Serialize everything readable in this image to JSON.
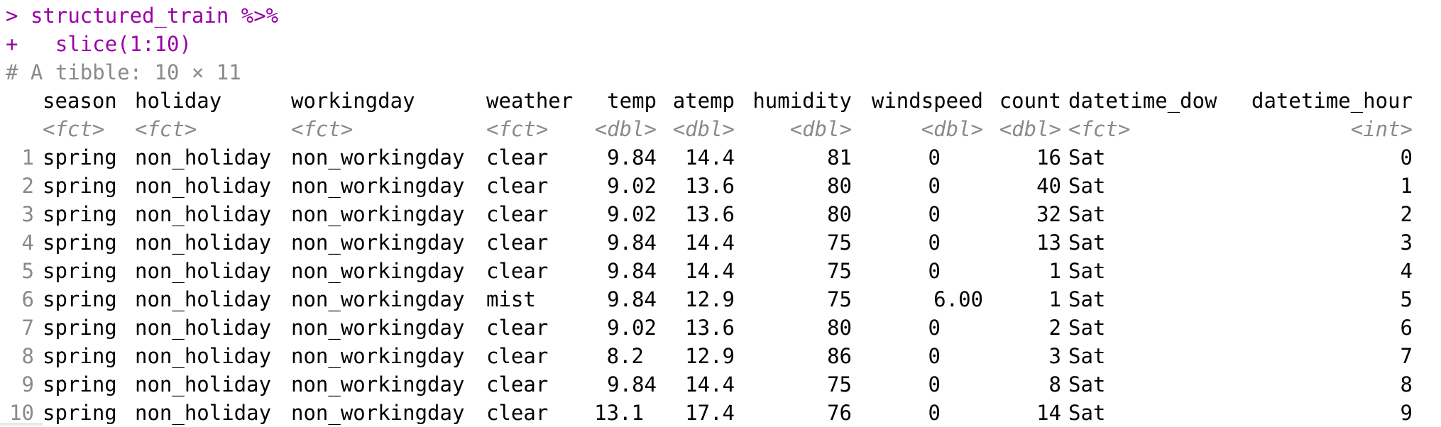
{
  "console": {
    "prompt_line": {
      "prompt": ">",
      "code": "structured_train %>%"
    },
    "continuation_line": {
      "prompt": "+",
      "code": "  slice(1:10)"
    },
    "tibble_header": "# A tibble: 10 × 11"
  },
  "table": {
    "columns": [
      {
        "name": "season",
        "type": "<fct>"
      },
      {
        "name": "holiday",
        "type": "<fct>"
      },
      {
        "name": "workingday",
        "type": "<fct>"
      },
      {
        "name": "weather",
        "type": "<fct>"
      },
      {
        "name": "temp",
        "type": "<dbl>"
      },
      {
        "name": "atemp",
        "type": "<dbl>"
      },
      {
        "name": "humidity",
        "type": "<dbl>"
      },
      {
        "name": "windspeed",
        "type": "<dbl>"
      },
      {
        "name": "count",
        "type": "<dbl>"
      },
      {
        "name": "datetime_dow",
        "type": "<fct>"
      },
      {
        "name": "datetime_hour",
        "type": "<int>"
      }
    ],
    "rows": [
      [
        "1",
        "spring",
        "non_holiday",
        "non_workingday",
        "clear",
        "9.84",
        "14.4",
        "81",
        "0",
        "16",
        "Sat",
        "0"
      ],
      [
        "2",
        "spring",
        "non_holiday",
        "non_workingday",
        "clear",
        "9.02",
        "13.6",
        "80",
        "0",
        "40",
        "Sat",
        "1"
      ],
      [
        "3",
        "spring",
        "non_holiday",
        "non_workingday",
        "clear",
        "9.02",
        "13.6",
        "80",
        "0",
        "32",
        "Sat",
        "2"
      ],
      [
        "4",
        "spring",
        "non_holiday",
        "non_workingday",
        "clear",
        "9.84",
        "14.4",
        "75",
        "0",
        "13",
        "Sat",
        "3"
      ],
      [
        "5",
        "spring",
        "non_holiday",
        "non_workingday",
        "clear",
        "9.84",
        "14.4",
        "75",
        "0",
        "1",
        "Sat",
        "4"
      ],
      [
        "6",
        "spring",
        "non_holiday",
        "non_workingday",
        "mist",
        "9.84",
        "12.9",
        "75",
        "6.00",
        "1",
        "Sat",
        "5"
      ],
      [
        "7",
        "spring",
        "non_holiday",
        "non_workingday",
        "clear",
        "9.02",
        "13.6",
        "80",
        "0",
        "2",
        "Sat",
        "6"
      ],
      [
        "8",
        "spring",
        "non_holiday",
        "non_workingday",
        "clear",
        "8.2",
        "12.9",
        "86",
        "0",
        "3",
        "Sat",
        "7"
      ],
      [
        "9",
        "spring",
        "non_holiday",
        "non_workingday",
        "clear",
        "9.84",
        "14.4",
        "75",
        "0",
        "8",
        "Sat",
        "8"
      ],
      [
        "10",
        "spring",
        "non_holiday",
        "non_workingday",
        "clear",
        "13.1",
        "17.4",
        "76",
        "0",
        "14",
        "Sat",
        "9"
      ]
    ]
  },
  "colors": {
    "code": "#9b00a8",
    "comment": "#8a8a8a",
    "text": "#000000",
    "background": "#ffffff"
  }
}
